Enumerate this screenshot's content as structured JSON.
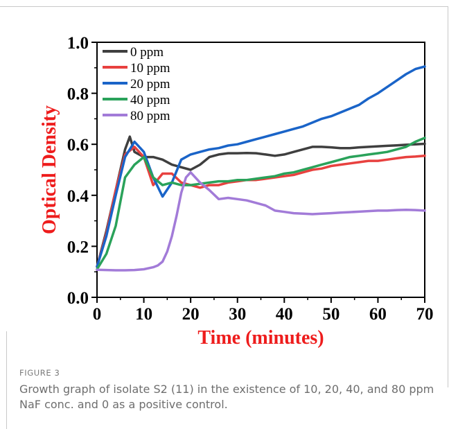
{
  "figure": {
    "label": "FIGURE 3",
    "caption": "Growth graph of isolate S2 (11) in the existence of 10, 20, 40, and 80 ppm NaF conc. and 0 as a positive control."
  },
  "chart_data": {
    "type": "line",
    "title": "",
    "xlabel": "Time (minutes)",
    "ylabel": "Optical Density",
    "xlim": [
      0,
      70
    ],
    "ylim": [
      0,
      1
    ],
    "xticks": [
      0,
      10,
      20,
      30,
      40,
      50,
      60,
      70
    ],
    "yticks": [
      "0.0",
      "0.2",
      "0.4",
      "0.6",
      "0.8",
      "1.0"
    ],
    "axis_label_color": "#ee1c1c",
    "grid": false,
    "legend_position": "top-left",
    "series": [
      {
        "name": "0 ppm",
        "color": "#3f3f3f",
        "x": [
          0,
          2,
          4,
          6,
          7,
          8,
          10,
          12,
          14,
          16,
          18,
          20,
          22,
          24,
          26,
          28,
          30,
          32,
          34,
          36,
          38,
          40,
          42,
          44,
          46,
          48,
          50,
          52,
          54,
          56,
          58,
          60,
          62,
          64,
          66,
          68,
          70
        ],
        "y": [
          0.12,
          0.26,
          0.42,
          0.58,
          0.63,
          0.57,
          0.55,
          0.55,
          0.54,
          0.52,
          0.51,
          0.5,
          0.52,
          0.55,
          0.56,
          0.565,
          0.565,
          0.566,
          0.565,
          0.56,
          0.555,
          0.56,
          0.57,
          0.58,
          0.59,
          0.59,
          0.588,
          0.585,
          0.585,
          0.588,
          0.59,
          0.592,
          0.594,
          0.596,
          0.598,
          0.6,
          0.602
        ]
      },
      {
        "name": "10 ppm",
        "color": "#e8413f",
        "x": [
          0,
          2,
          4,
          6,
          8,
          10,
          12,
          14,
          16,
          18,
          20,
          22,
          24,
          26,
          28,
          30,
          32,
          34,
          36,
          38,
          40,
          42,
          44,
          46,
          48,
          50,
          52,
          54,
          56,
          58,
          60,
          62,
          64,
          66,
          68,
          70
        ],
        "y": [
          0.12,
          0.25,
          0.42,
          0.56,
          0.59,
          0.55,
          0.44,
          0.485,
          0.485,
          0.45,
          0.44,
          0.43,
          0.44,
          0.44,
          0.45,
          0.455,
          0.46,
          0.46,
          0.465,
          0.47,
          0.475,
          0.48,
          0.49,
          0.5,
          0.505,
          0.515,
          0.52,
          0.525,
          0.53,
          0.535,
          0.535,
          0.54,
          0.545,
          0.55,
          0.552,
          0.555
        ]
      },
      {
        "name": "20 ppm",
        "color": "#1a64c8",
        "x": [
          0,
          2,
          4,
          6,
          8,
          10,
          12,
          14,
          16,
          18,
          20,
          22,
          24,
          26,
          28,
          30,
          32,
          34,
          36,
          38,
          40,
          42,
          44,
          46,
          48,
          50,
          52,
          54,
          56,
          58,
          60,
          62,
          64,
          66,
          68,
          70
        ],
        "y": [
          0.12,
          0.24,
          0.4,
          0.55,
          0.61,
          0.57,
          0.47,
          0.395,
          0.45,
          0.54,
          0.56,
          0.57,
          0.58,
          0.585,
          0.595,
          0.6,
          0.61,
          0.62,
          0.63,
          0.64,
          0.65,
          0.66,
          0.67,
          0.685,
          0.7,
          0.71,
          0.725,
          0.74,
          0.755,
          0.78,
          0.8,
          0.825,
          0.85,
          0.875,
          0.895,
          0.905
        ]
      },
      {
        "name": "40 ppm",
        "color": "#2aa25a",
        "x": [
          0,
          2,
          4,
          6,
          8,
          10,
          12,
          14,
          16,
          18,
          20,
          22,
          24,
          26,
          28,
          30,
          32,
          34,
          36,
          38,
          40,
          42,
          44,
          46,
          48,
          50,
          52,
          54,
          56,
          58,
          60,
          62,
          64,
          66,
          68,
          70
        ],
        "y": [
          0.11,
          0.17,
          0.28,
          0.47,
          0.52,
          0.55,
          0.47,
          0.44,
          0.45,
          0.44,
          0.44,
          0.445,
          0.45,
          0.455,
          0.455,
          0.46,
          0.46,
          0.465,
          0.47,
          0.475,
          0.485,
          0.49,
          0.5,
          0.51,
          0.52,
          0.53,
          0.54,
          0.55,
          0.555,
          0.56,
          0.565,
          0.57,
          0.58,
          0.59,
          0.61,
          0.625
        ]
      },
      {
        "name": "80 ppm",
        "color": "#a27bd8",
        "x": [
          0,
          2,
          4,
          6,
          8,
          10,
          12,
          13,
          14,
          15,
          16,
          17,
          18,
          19,
          20,
          22,
          24,
          26,
          28,
          30,
          32,
          34,
          36,
          38,
          40,
          42,
          44,
          46,
          48,
          50,
          52,
          54,
          56,
          58,
          60,
          62,
          64,
          66,
          68,
          70
        ],
        "y": [
          0.108,
          0.107,
          0.106,
          0.106,
          0.107,
          0.11,
          0.118,
          0.125,
          0.14,
          0.18,
          0.24,
          0.32,
          0.41,
          0.47,
          0.49,
          0.45,
          0.42,
          0.385,
          0.39,
          0.385,
          0.38,
          0.37,
          0.36,
          0.34,
          0.335,
          0.33,
          0.328,
          0.326,
          0.328,
          0.33,
          0.332,
          0.334,
          0.336,
          0.338,
          0.34,
          0.34,
          0.342,
          0.343,
          0.342,
          0.34
        ]
      }
    ]
  }
}
